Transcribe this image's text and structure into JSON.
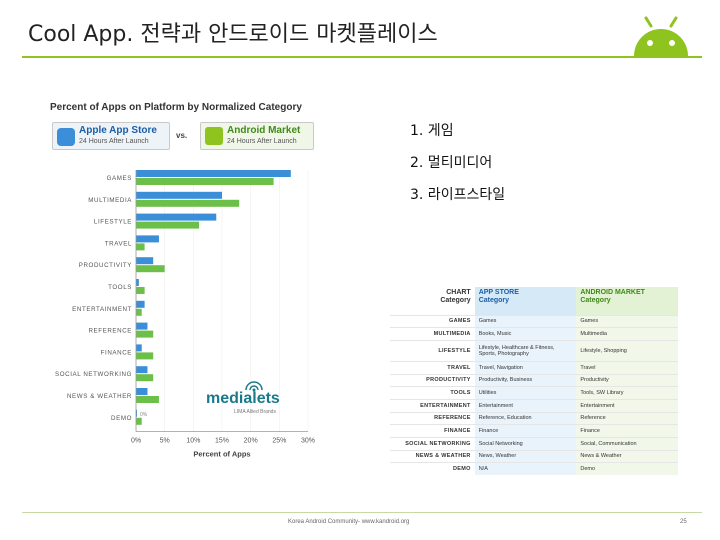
{
  "slide": {
    "title": "Cool App. 전략과 안드로이드 마켓플레이스",
    "footer_text": "Korea Android Community- www.kandroid.org",
    "page_number": "25"
  },
  "colors": {
    "accent_green": "#8fc31f",
    "apple_blue": "#3a8fd8",
    "android_green": "#6cc04a"
  },
  "badges": {
    "apple_title": "Apple App Store",
    "apple_sub": "24 Hours After Launch",
    "vs": "vs.",
    "android_title": "Android Market",
    "android_sub": "24 Hours After Launch"
  },
  "branding": {
    "name": "medialets",
    "sub": "LIMA Allied Brands"
  },
  "rank_list": [
    "1. 게임",
    "2. 멀티미디어",
    "3. 라이프스타일"
  ],
  "chart_data": {
    "type": "bar",
    "orientation": "horizontal",
    "title": "Percent of Apps on Platform by Normalized Category",
    "xlabel": "Percent of Apps",
    "ylabel": "",
    "xlim": [
      0,
      30
    ],
    "ticks": [
      "0%",
      "5%",
      "10%",
      "15%",
      "20%",
      "25%",
      "30%"
    ],
    "tick_values": [
      0,
      5,
      10,
      15,
      20,
      25,
      30
    ],
    "categories": [
      "GAMES",
      "MULTIMEDIA",
      "LIFESTYLE",
      "TRAVEL",
      "PRODUCTIVITY",
      "TOOLS",
      "ENTERTAINMENT",
      "REFERENCE",
      "FINANCE",
      "SOCIAL NETWORKING",
      "NEWS & WEATHER",
      "DEMO"
    ],
    "series": [
      {
        "name": "Apple App Store",
        "color": "#3a8fd8",
        "values": [
          27,
          15,
          14,
          4,
          3,
          0.5,
          1.5,
          2,
          1,
          2,
          2,
          0
        ]
      },
      {
        "name": "Android Market",
        "color": "#6cc04a",
        "values": [
          24,
          18,
          11,
          1.5,
          5,
          1.5,
          1,
          3,
          3,
          3,
          4,
          1
        ]
      }
    ],
    "annotations": [
      "0%"
    ]
  },
  "mapping_table": {
    "headers": [
      [
        "CHART",
        "Category"
      ],
      [
        "APP STORE",
        "Category"
      ],
      [
        "ANDROID MARKET",
        "Category"
      ]
    ],
    "rows": [
      [
        "GAMES",
        "Games",
        "Games"
      ],
      [
        "MULTIMEDIA",
        "Books, Music",
        "Multimedia"
      ],
      [
        "LIFESTYLE",
        "Lifestyle, Healthcare & Fitness, Sports, Photography",
        "Lifestyle, Shopping"
      ],
      [
        "TRAVEL",
        "Travel, Navigation",
        "Travel"
      ],
      [
        "PRODUCTIVITY",
        "Productivity, Business",
        "Productivity"
      ],
      [
        "TOOLS",
        "Utilities",
        "Tools, SW Library"
      ],
      [
        "ENTERTAINMENT",
        "Entertainment",
        "Entertainment"
      ],
      [
        "REFERENCE",
        "Reference, Education",
        "Reference"
      ],
      [
        "FINANCE",
        "Finance",
        "Finance"
      ],
      [
        "SOCIAL NETWORKING",
        "Social Networking",
        "Social, Communication"
      ],
      [
        "NEWS & WEATHER",
        "News, Weather",
        "News & Weather"
      ],
      [
        "DEMO",
        "N/A",
        "Demo"
      ]
    ]
  }
}
